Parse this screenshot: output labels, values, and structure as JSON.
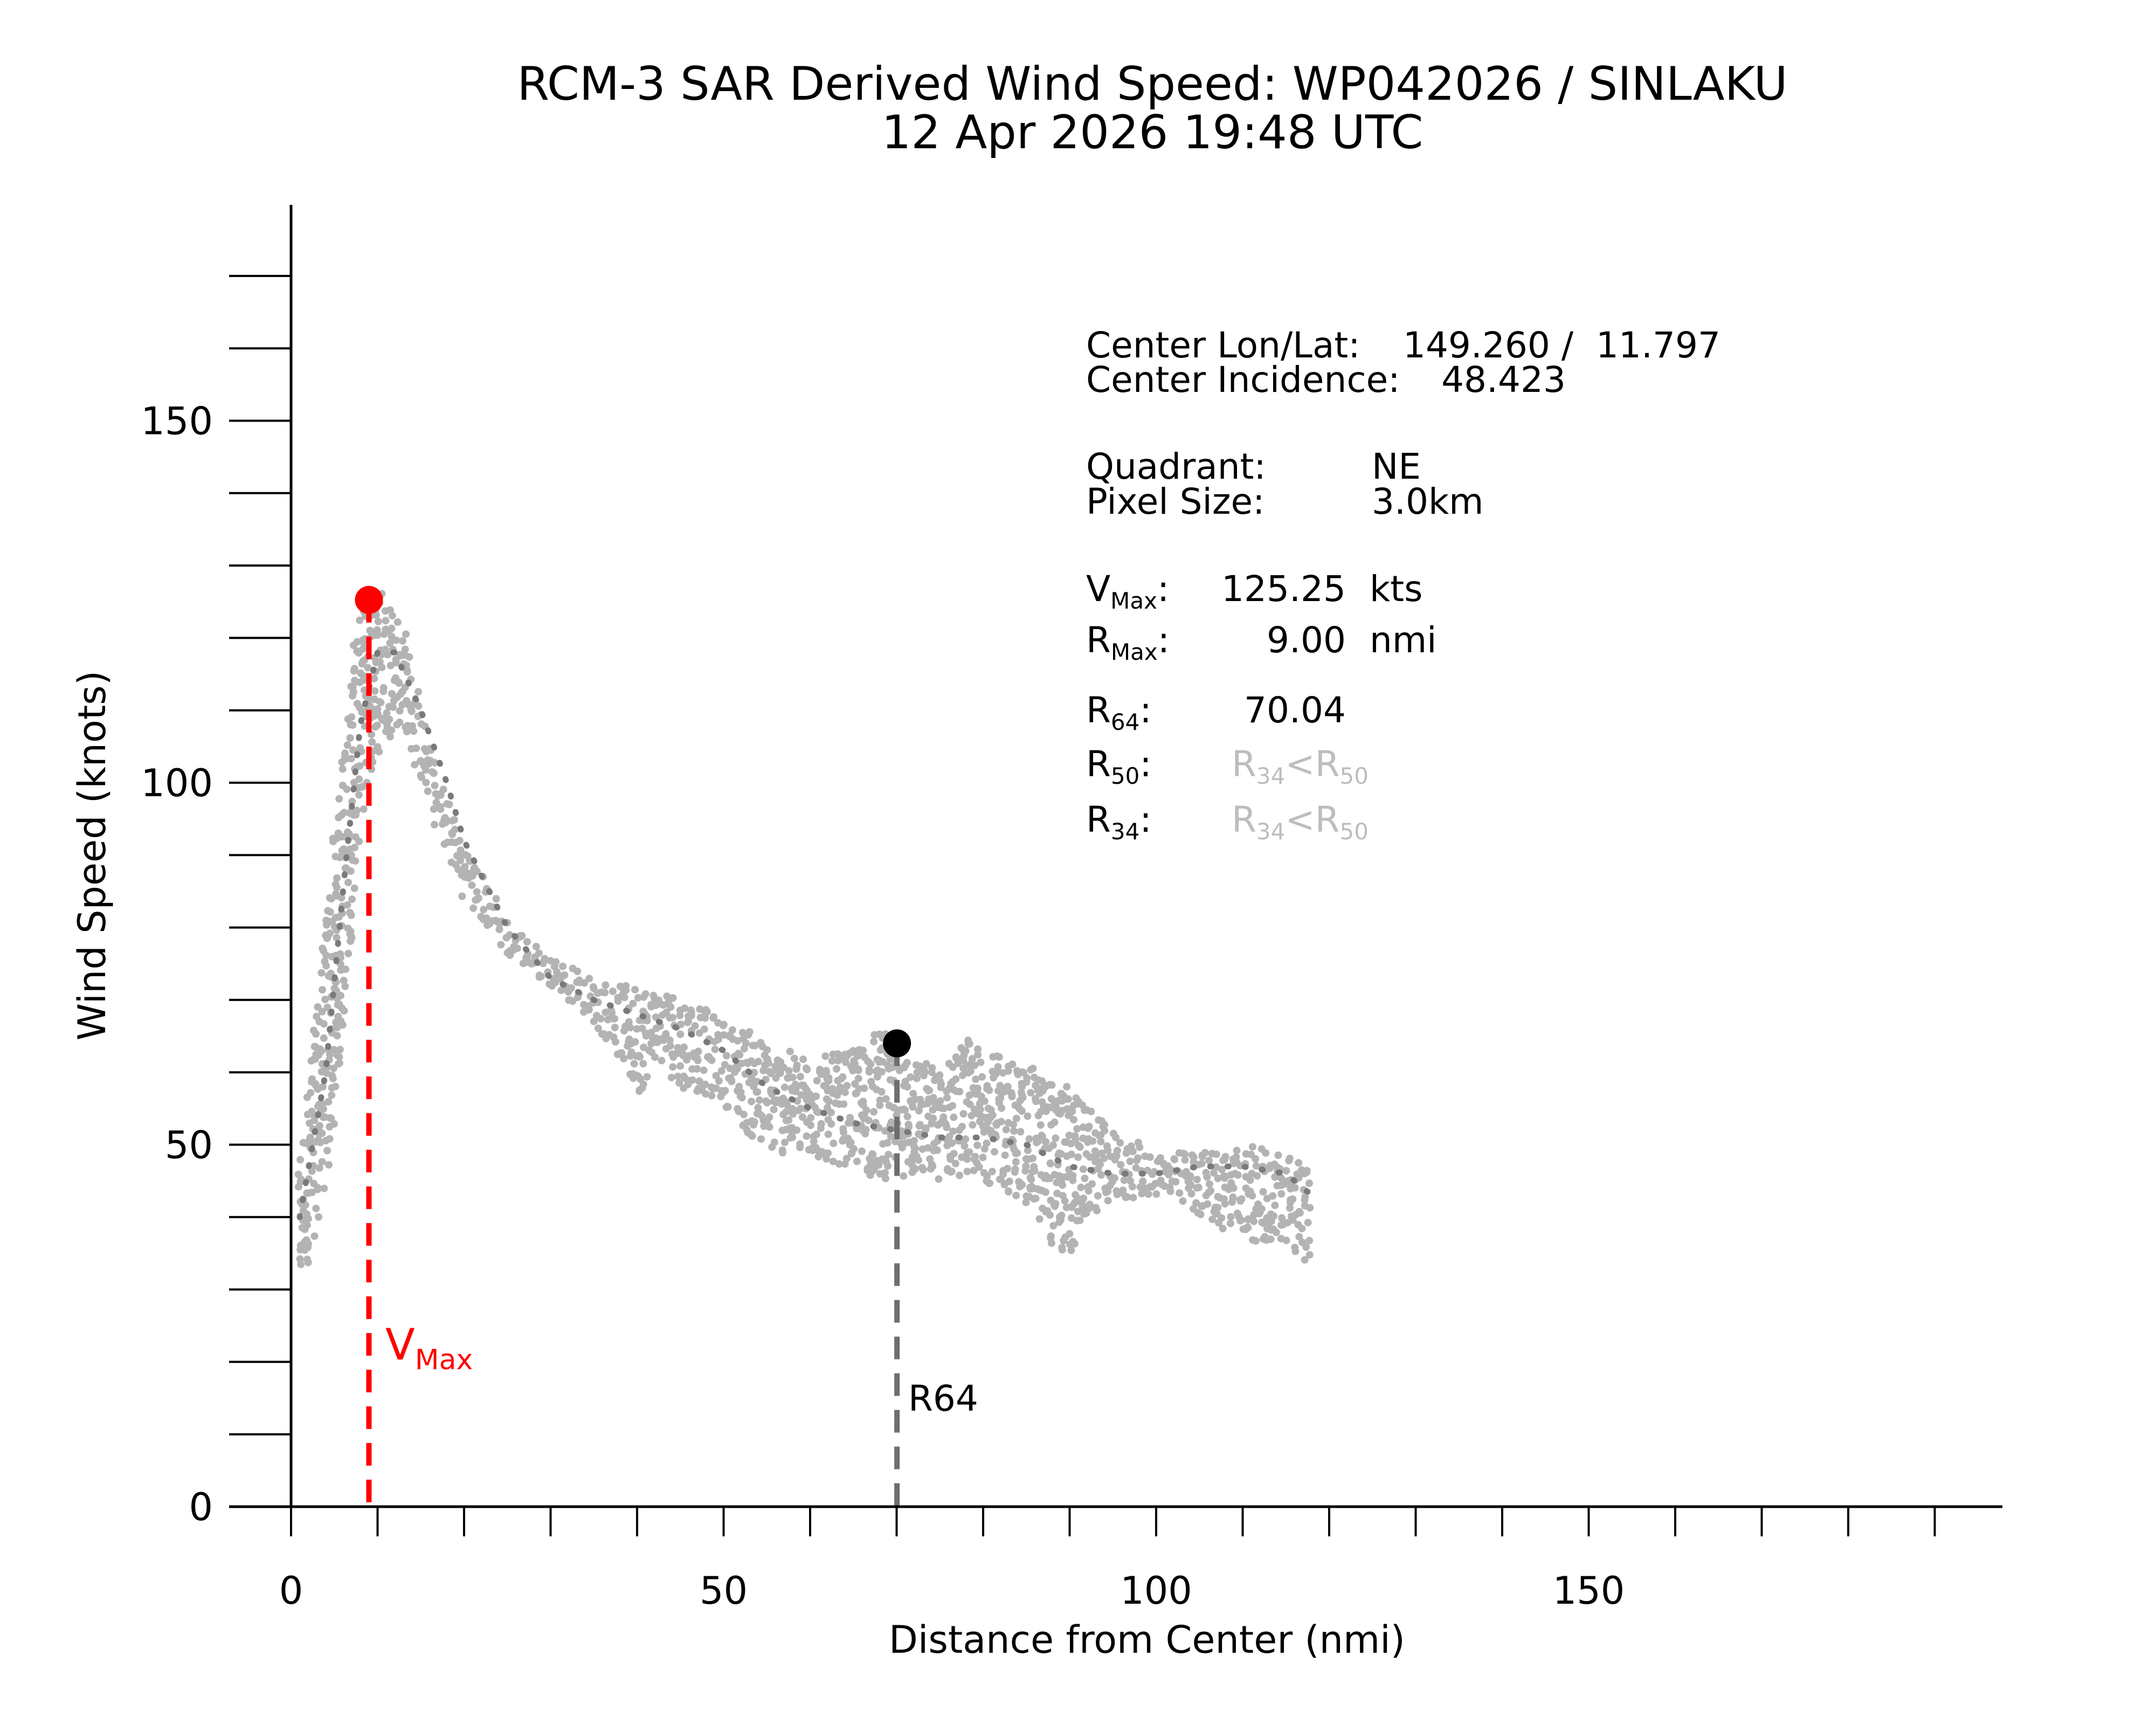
{
  "chart_data": {
    "type": "scatter",
    "title": "RCM-3 SAR Derived Wind Speed: WP042026 / SINLAKU",
    "subtitle": "12 Apr 2026 19:48 UTC",
    "xlabel": "Distance from Center (nmi)",
    "ylabel": "Wind Speed (knots)",
    "xlim": [
      0,
      197
    ],
    "ylim": [
      0,
      180
    ],
    "x_ticks": [
      0,
      50,
      100,
      150
    ],
    "x_tick_labels": [
      "0",
      "50",
      "100",
      "150"
    ],
    "x_minor_step": 10,
    "y_ticks": [
      0,
      50,
      100,
      150
    ],
    "y_tick_labels": [
      "0",
      "50",
      "100",
      "150"
    ],
    "y_minor_step": 10,
    "grid": false,
    "scatter_envelope": {
      "x": [
        1,
        3,
        5,
        7,
        8,
        9,
        10,
        11,
        13,
        15,
        17,
        20,
        25,
        30,
        35,
        38,
        40,
        42,
        45,
        50,
        53,
        55,
        60,
        65,
        68,
        70,
        72,
        75,
        78,
        80,
        85,
        88,
        90,
        92,
        95,
        100,
        105,
        110,
        115,
        118
      ],
      "upper": [
        48,
        70,
        92,
        118,
        124,
        127,
        128,
        127,
        122,
        110,
        102,
        92,
        81,
        76,
        73,
        72,
        72,
        72,
        71,
        67,
        66,
        64,
        62,
        63,
        66,
        64,
        63,
        60,
        65,
        63,
        61,
        59,
        58,
        55,
        52,
        49,
        49,
        50,
        49,
        47
      ],
      "lower": [
        30,
        38,
        52,
        80,
        95,
        100,
        104,
        106,
        108,
        100,
        93,
        84,
        76,
        72,
        67,
        62,
        56,
        62,
        58,
        56,
        51,
        49,
        48,
        47,
        45,
        46,
        45,
        45,
        46,
        45,
        42,
        36,
        34,
        40,
        42,
        43,
        40,
        37,
        36,
        33
      ]
    },
    "mean_profile": {
      "x": [
        1,
        4,
        6,
        8,
        10,
        12,
        15,
        18,
        20,
        25,
        30,
        35,
        40,
        45,
        50,
        55,
        60,
        65,
        70,
        75,
        80,
        85,
        90,
        95,
        100,
        105,
        110,
        115,
        118
      ],
      "y": [
        40,
        60,
        85,
        108,
        118,
        118,
        110,
        100,
        92,
        80,
        73,
        70,
        68,
        66,
        63,
        58,
        55,
        53,
        52,
        51,
        51,
        50,
        47,
        46,
        46,
        47,
        47,
        46,
        43
      ]
    },
    "vmax_point": {
      "x": 9.0,
      "y": 125.25,
      "label_main": "V",
      "label_sub": "Max"
    },
    "r64_point": {
      "x": 70.04,
      "y": 64,
      "label": "R64"
    },
    "colors": {
      "scatter": "#b3b3b3",
      "mean_line": "#7a7a7a",
      "vmax": "#ff0000",
      "r64_marker": "#000000",
      "r64_line": "#6e6e6e",
      "info_grey": "#bdbdbd"
    }
  },
  "info": {
    "center_lonlat_label": "Center Lon/Lat:",
    "center_lonlat_value": "149.260 /  11.797",
    "center_incidence_label": "Center Incidence:",
    "center_incidence_value": "48.423",
    "quadrant_label": "Quadrant:",
    "quadrant_value": "NE",
    "pixel_size_label": "Pixel Size:",
    "pixel_size_value": "3.0km",
    "vmax_main": "V",
    "vmax_sub": "Max",
    "vmax_value": "125.25",
    "vmax_unit": "kts",
    "rmax_main": "R",
    "rmax_sub": "Max",
    "rmax_value": "9.00",
    "rmax_unit": "nmi",
    "r64_main": "R",
    "r64_sub": "64",
    "r64_value": "70.04",
    "r50_main": "R",
    "r50_sub": "50",
    "r34_main": "R",
    "r34_sub": "34",
    "r34_lt_r50": {
      "a": "R",
      "a_sub": "34",
      "op": "<",
      "b": "R",
      "b_sub": "50"
    }
  }
}
